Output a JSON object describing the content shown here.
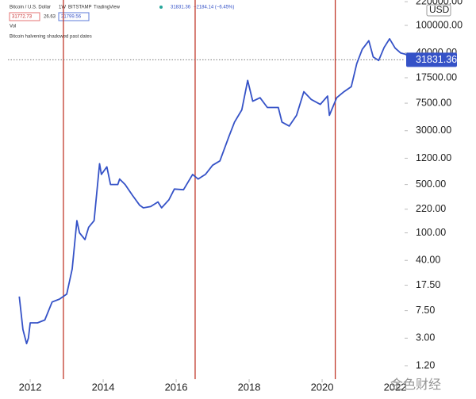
{
  "header": {
    "symbol": "Bitcoin / U.S. Dollar",
    "interval": "1W",
    "exchange": "BITSTAMP",
    "source": "TradingView",
    "quote": "31831.36",
    "change": "−2184.14 (−6.45%)",
    "bid": "31772.73",
    "spread": "26.63",
    "ask": "31799.56",
    "volume": "Vol",
    "note": "Bitcoin halvening shadowed past dates"
  },
  "watermark": "金色财经",
  "chart_data": {
    "type": "line",
    "log_scale": true,
    "grid": false,
    "currency": "USD",
    "x": [
      2011.7,
      2011.8,
      2011.9,
      2011.95,
      2012.0,
      2012.2,
      2012.4,
      2012.6,
      2012.8,
      2013.0,
      2013.15,
      2013.28,
      2013.35,
      2013.5,
      2013.6,
      2013.75,
      2013.9,
      2013.95,
      2014.1,
      2014.2,
      2014.4,
      2014.45,
      2014.6,
      2014.8,
      2015.0,
      2015.1,
      2015.3,
      2015.5,
      2015.6,
      2015.8,
      2015.95,
      2016.2,
      2016.45,
      2016.6,
      2016.8,
      2017.0,
      2017.2,
      2017.45,
      2017.6,
      2017.8,
      2017.96,
      2018.1,
      2018.3,
      2018.5,
      2018.8,
      2018.9,
      2019.1,
      2019.3,
      2019.5,
      2019.7,
      2019.95,
      2020.15,
      2020.2,
      2020.4,
      2020.6,
      2020.8,
      2020.95,
      2021.1,
      2021.28,
      2021.4,
      2021.55,
      2021.7,
      2021.85,
      2022.0,
      2022.15,
      2022.3,
      2022.4
    ],
    "series": [
      {
        "name": "Bitcoin / U.S. Dollar",
        "color": "#3552c7",
        "values": [
          12,
          4,
          2.5,
          3,
          5,
          5,
          5.5,
          10,
          11,
          13,
          30,
          150,
          100,
          80,
          120,
          150,
          1000,
          700,
          900,
          500,
          500,
          600,
          500,
          350,
          250,
          230,
          240,
          280,
          230,
          300,
          430,
          420,
          700,
          600,
          700,
          950,
          1100,
          2500,
          4000,
          6000,
          16000,
          8000,
          9000,
          6500,
          6500,
          4000,
          3500,
          5000,
          11000,
          8500,
          7200,
          9500,
          5000,
          9000,
          11000,
          13000,
          28000,
          45000,
          60000,
          35000,
          31000,
          48000,
          64000,
          47000,
          40000,
          38000,
          31831.36
        ]
      }
    ],
    "last_price": {
      "value": 31831.36,
      "label": "31831.36"
    },
    "halvings": [
      2012.91,
      2016.52,
      2020.36
    ],
    "halving_color": "#c0392b",
    "xlim": [
      2011.39,
      2022.26
    ],
    "xticks": [
      2012,
      2014,
      2016,
      2018,
      2020,
      2022
    ],
    "ylim": [
      0.766,
      232800
    ],
    "yticks": [
      {
        "value": 220000,
        "label": "220000.00"
      },
      {
        "value": 100000,
        "label": "100000.00"
      },
      {
        "value": 40000,
        "label": "40000.00"
      },
      {
        "value": 17500,
        "label": "17500.00"
      },
      {
        "value": 7500,
        "label": "7500.00"
      },
      {
        "value": 3000,
        "label": "3000.00"
      },
      {
        "value": 1200,
        "label": "1200.00"
      },
      {
        "value": 500,
        "label": "500.00"
      },
      {
        "value": 220,
        "label": "220.00"
      },
      {
        "value": 100,
        "label": "100.00"
      },
      {
        "value": 40,
        "label": "40.00"
      },
      {
        "value": 17.5,
        "label": "17.50"
      },
      {
        "value": 7.5,
        "label": "7.50"
      },
      {
        "value": 3,
        "label": "3.00"
      },
      {
        "value": 1.2,
        "label": "1.20"
      }
    ]
  }
}
